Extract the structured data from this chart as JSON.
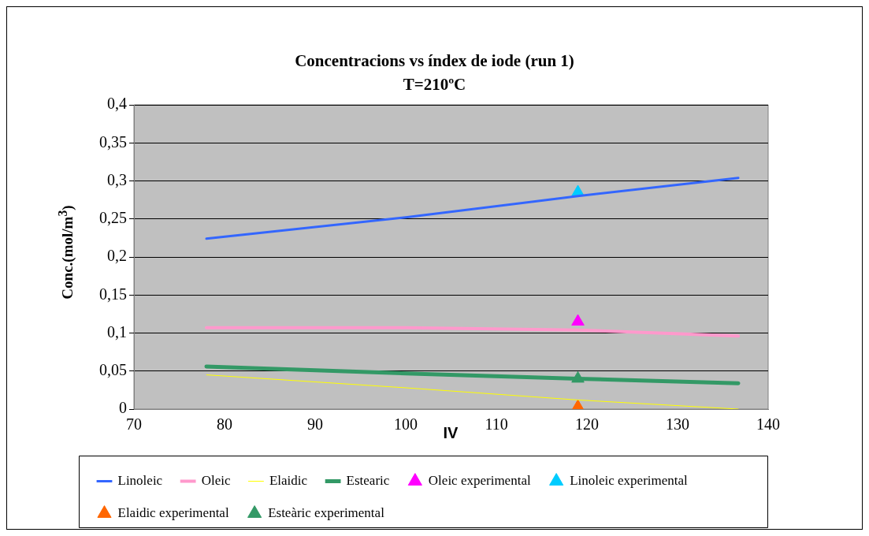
{
  "chart_data": {
    "type": "line",
    "title": "Concentracions vs índex de iode (run 1)",
    "subtitle": "T=210ºC",
    "xlabel": "IV",
    "ylabel": "Conc.(mol/m$^{3}$)",
    "xlim": [
      70,
      140
    ],
    "xticks": [
      70,
      80,
      90,
      100,
      110,
      120,
      130,
      140
    ],
    "ylim": [
      0,
      0.4
    ],
    "yticks": [
      {
        "value": 0,
        "label": "0"
      },
      {
        "value": 0.05,
        "label": "0,05"
      },
      {
        "value": 0.1,
        "label": "0,1"
      },
      {
        "value": 0.15,
        "label": "0,15"
      },
      {
        "value": 0.2,
        "label": "0,2"
      },
      {
        "value": 0.25,
        "label": "0,25"
      },
      {
        "value": 0.3,
        "label": "0,3"
      },
      {
        "value": 0.35,
        "label": "0,35"
      },
      {
        "value": 0.4,
        "label": "0,4"
      }
    ],
    "grid": "y",
    "legend": "bottom",
    "series": [
      {
        "name": "Linoleic",
        "type": "line",
        "marker": "none",
        "color": "#3366ff",
        "x": [
          78,
          100,
          119,
          136.7
        ],
        "values": [
          0.224,
          0.252,
          0.28,
          0.304
        ]
      },
      {
        "name": "Oleic",
        "type": "line",
        "marker": "none",
        "color": "#ff99cc",
        "x": [
          78,
          100,
          119,
          136.7
        ],
        "values": [
          0.107,
          0.107,
          0.104,
          0.096
        ]
      },
      {
        "name": "Elaidic",
        "type": "line",
        "marker": "none",
        "color": "#ffff00",
        "x": [
          78,
          100,
          119,
          136.7
        ],
        "values": [
          0.045,
          0.028,
          0.012,
          0.0
        ]
      },
      {
        "name": "Estearic",
        "type": "line",
        "marker": "none",
        "color": "#339966",
        "x": [
          78,
          100,
          119,
          136.7
        ],
        "values": [
          0.056,
          0.047,
          0.04,
          0.034
        ]
      },
      {
        "name": "Oleic experimental",
        "type": "scatter",
        "marker": "triangle",
        "color": "#ff00ff",
        "x": [
          119
        ],
        "values": [
          0.115
        ]
      },
      {
        "name": "Linoleic experimental",
        "type": "scatter",
        "marker": "triangle",
        "color": "#00ccff",
        "x": [
          119
        ],
        "values": [
          0.285
        ]
      },
      {
        "name": "Elaidic experimental",
        "type": "scatter",
        "marker": "triangle",
        "color": "#ff6600",
        "x": [
          119
        ],
        "values": [
          0.003
        ]
      },
      {
        "name": "Esteàric experimental",
        "type": "scatter",
        "marker": "triangle",
        "color": "#339966",
        "x": [
          119
        ],
        "values": [
          0.04
        ]
      }
    ]
  }
}
